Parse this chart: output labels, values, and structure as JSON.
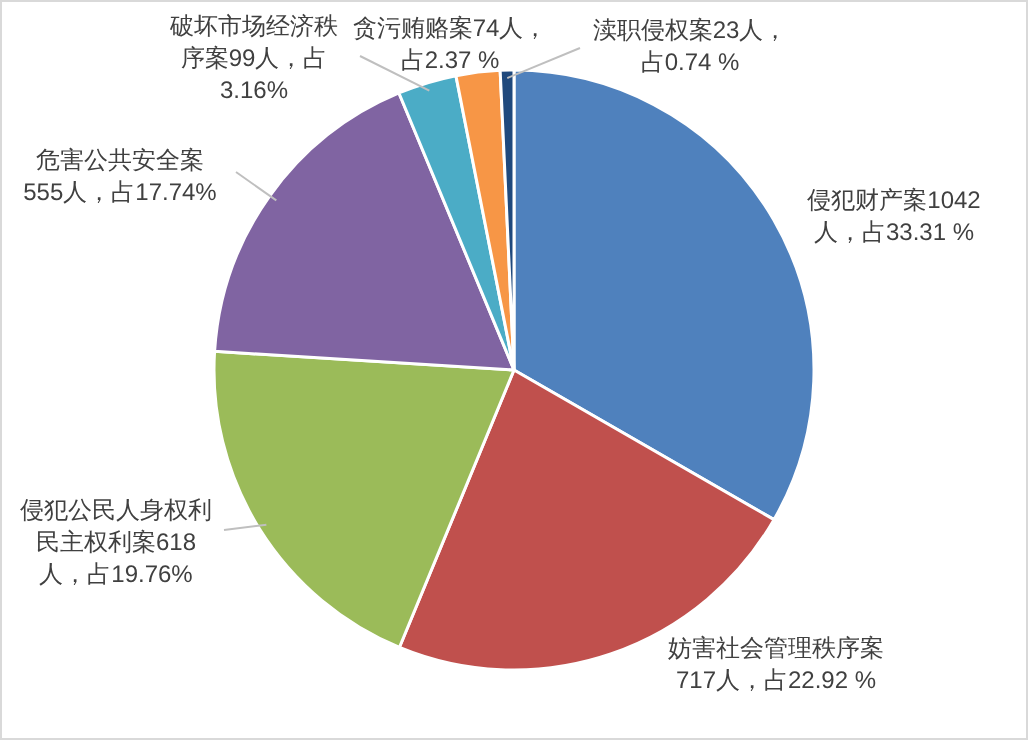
{
  "chart_data": {
    "type": "pie",
    "categories": [
      "侵犯财产案",
      "妨害社会管理秩序案",
      "侵犯公民人身权利民主权利案",
      "危害公共安全案",
      "破坏市场经济秩序案",
      "贪污贿赂案",
      "渎职侵权案"
    ],
    "values": [
      1042,
      717,
      618,
      555,
      99,
      74,
      23
    ],
    "colors": [
      "#4f81bd",
      "#c0504d",
      "#9bbb59",
      "#8064a2",
      "#4bacc6",
      "#f79646",
      "#1f497d"
    ],
    "value_labels": [
      "1042人，占33.31 %",
      "717人，占22.92 %",
      "618人，占19.76%",
      "555人，占17.74%",
      "99人，占3.16%",
      "74人，占2.37 %",
      "23人，占0.74 %"
    ]
  }
}
